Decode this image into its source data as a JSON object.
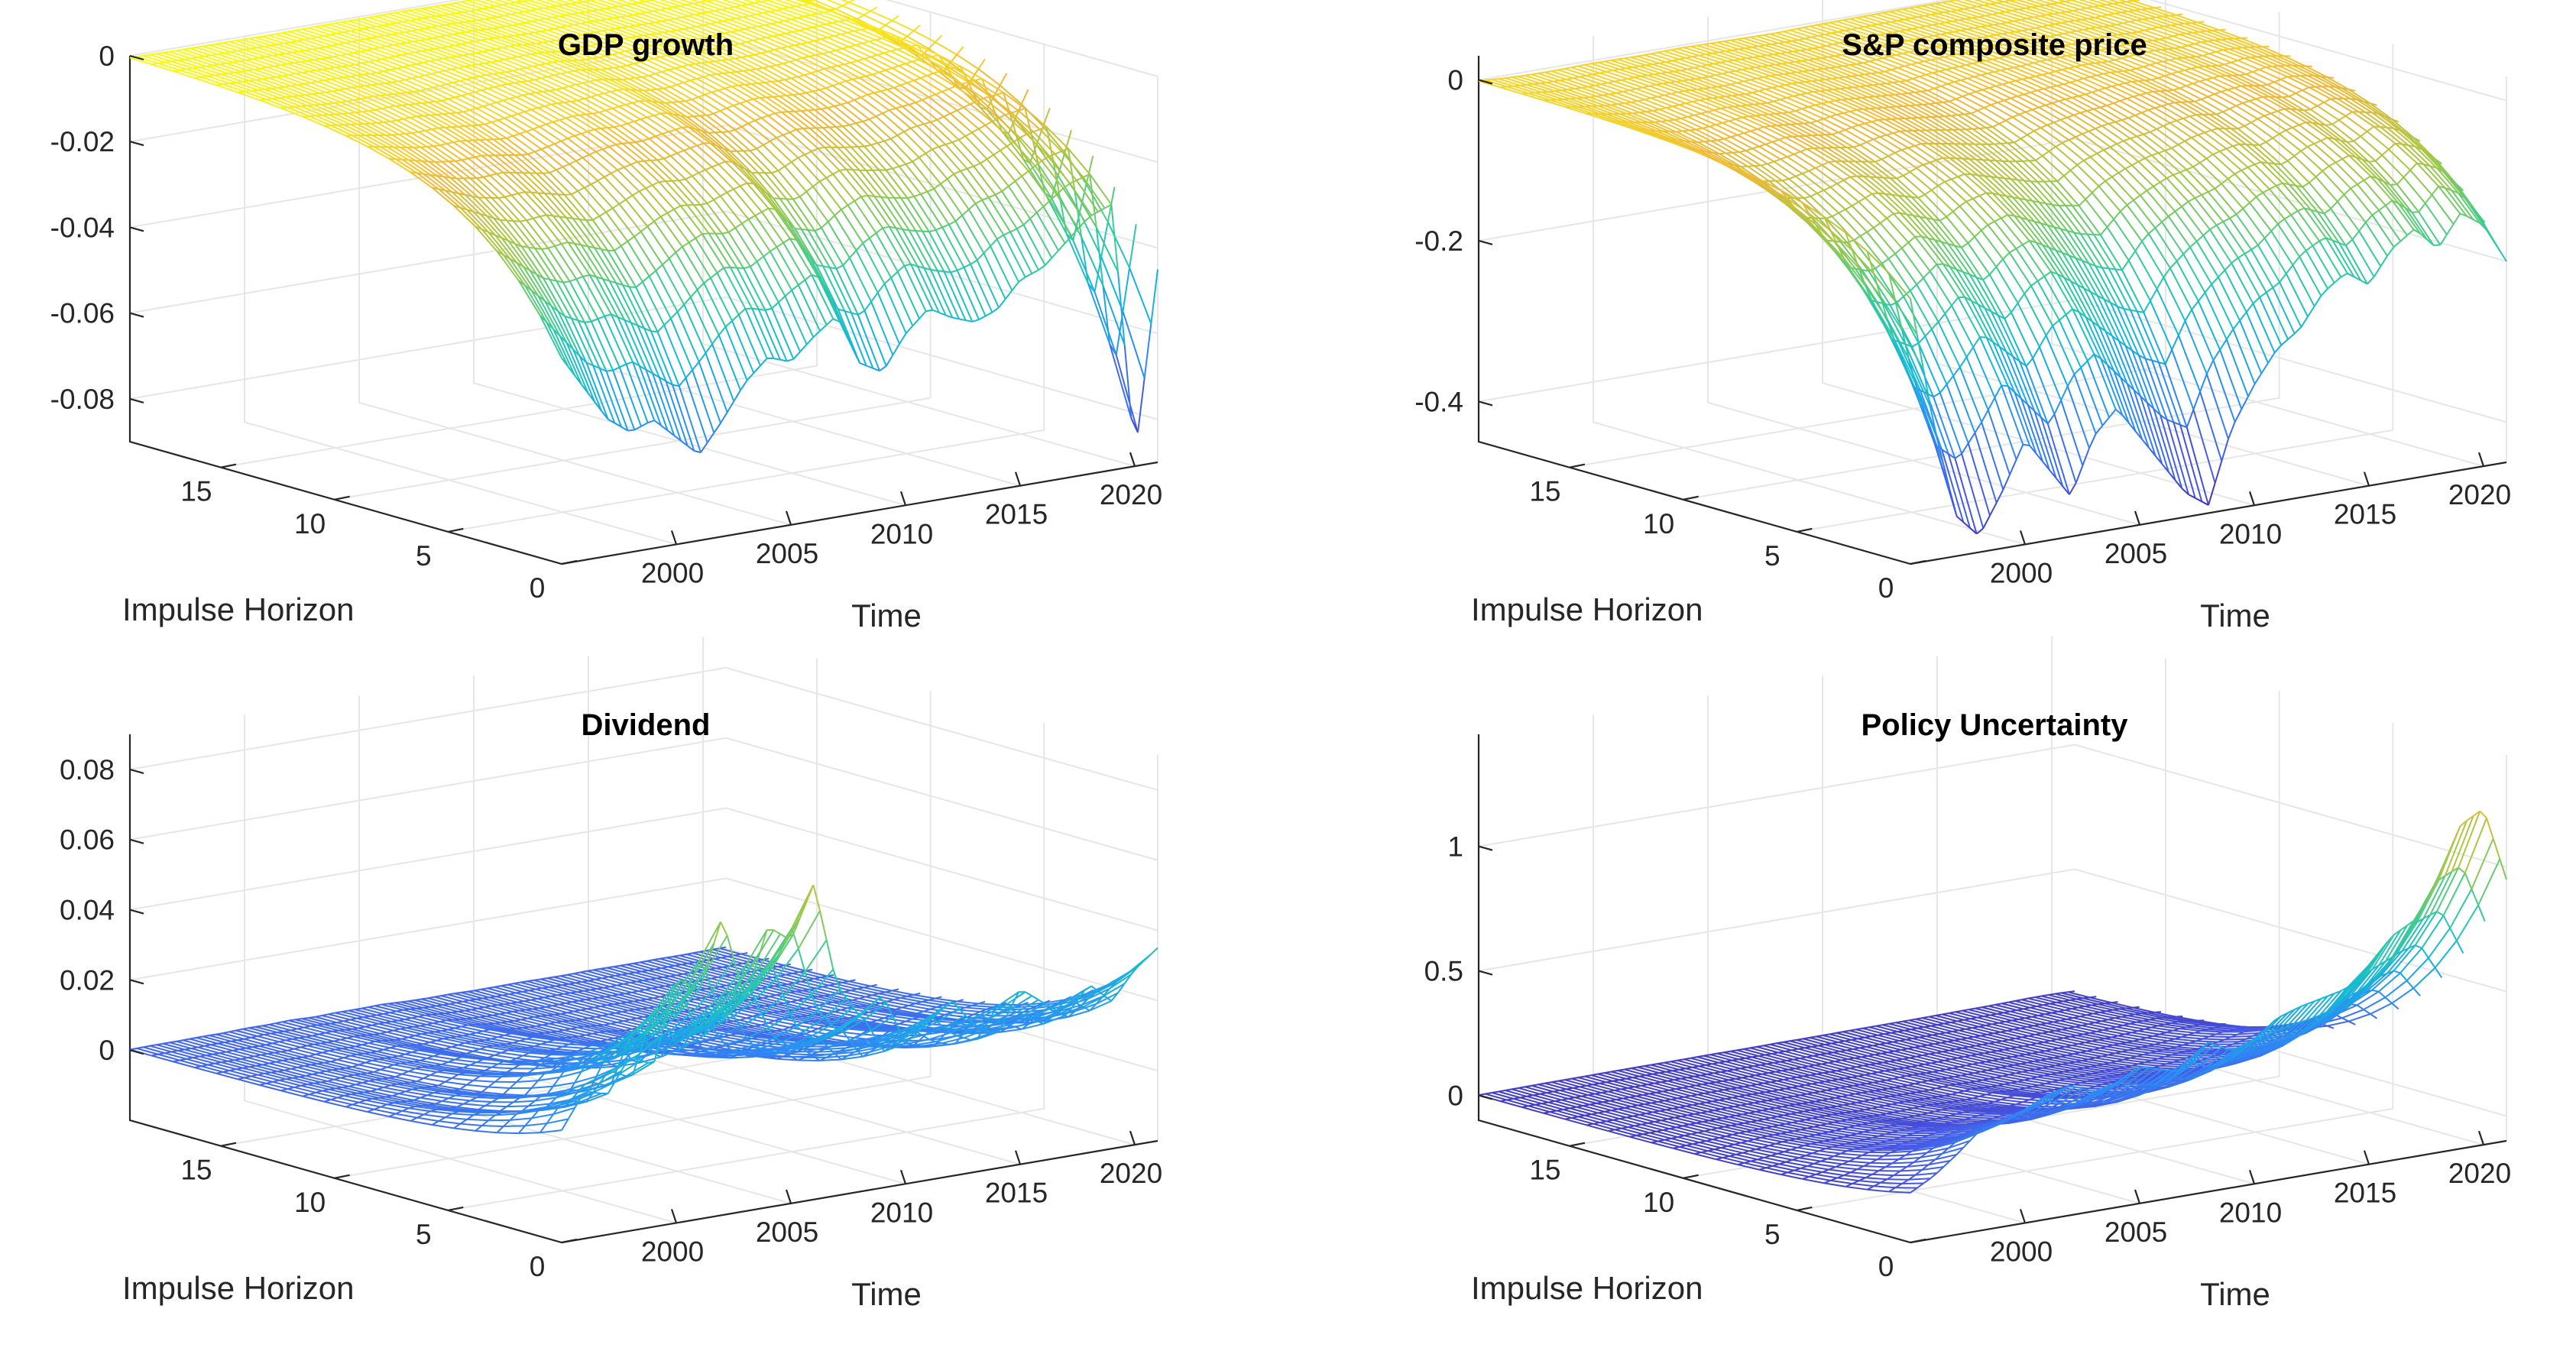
{
  "chart_data": [
    {
      "type": "surface",
      "title": "GDP growth",
      "xlabel": "Time",
      "ylabel": "Impulse Horizon",
      "zlabel": "",
      "x_ticks": [
        "2000",
        "2005",
        "2010",
        "2015",
        "2020"
      ],
      "y_ticks": [
        "0",
        "5",
        "10",
        "15"
      ],
      "z_ticks": [
        "0",
        "-0.02",
        "-0.04",
        "-0.06",
        "-0.08"
      ],
      "zlim": [
        -0.09,
        0.0
      ],
      "time_range": [
        1995,
        2021
      ],
      "horizon_range": [
        0,
        19
      ],
      "colormap": "parula",
      "response_at_horizon0": [
        [
          1995,
          -0.042
        ],
        [
          1996,
          -0.05
        ],
        [
          1997,
          -0.058
        ],
        [
          1998,
          -0.062
        ],
        [
          1999,
          -0.06
        ],
        [
          2000,
          -0.065
        ],
        [
          2001,
          -0.07
        ],
        [
          2002,
          -0.063
        ],
        [
          2003,
          -0.055
        ],
        [
          2004,
          -0.05
        ],
        [
          2005,
          -0.052
        ],
        [
          2006,
          -0.047
        ],
        [
          2007,
          -0.043
        ],
        [
          2008,
          -0.055
        ],
        [
          2009,
          -0.058
        ],
        [
          2010,
          -0.05
        ],
        [
          2011,
          -0.045
        ],
        [
          2012,
          -0.048
        ],
        [
          2013,
          -0.05
        ],
        [
          2014,
          -0.048
        ],
        [
          2015,
          -0.042
        ],
        [
          2016,
          -0.04
        ],
        [
          2017,
          -0.035
        ],
        [
          2018,
          -0.03
        ],
        [
          2019,
          -0.028
        ],
        [
          2020,
          -0.088
        ],
        [
          2021,
          -0.045
        ]
      ]
    },
    {
      "type": "surface",
      "title": "S&P composite price",
      "xlabel": "Time",
      "ylabel": "Impulse Horizon",
      "zlabel": "",
      "x_ticks": [
        "2000",
        "2005",
        "2010",
        "2015",
        "2020"
      ],
      "y_ticks": [
        "0",
        "5",
        "10",
        "15"
      ],
      "z_ticks": [
        "0",
        "-0.2",
        "-0.4"
      ],
      "zlim": [
        -0.45,
        0.03
      ],
      "time_range": [
        1995,
        2021
      ],
      "horizon_range": [
        0,
        19
      ],
      "colormap": "parula",
      "response_at_horizon0": [
        [
          1995,
          -0.12
        ],
        [
          1996,
          -0.28
        ],
        [
          1997,
          -0.4
        ],
        [
          1998,
          -0.43
        ],
        [
          1999,
          -0.38
        ],
        [
          2000,
          -0.32
        ],
        [
          2001,
          -0.36
        ],
        [
          2002,
          -0.4
        ],
        [
          2003,
          -0.33
        ],
        [
          2004,
          -0.3
        ],
        [
          2005,
          -0.34
        ],
        [
          2006,
          -0.38
        ],
        [
          2007,
          -0.42
        ],
        [
          2008,
          -0.44
        ],
        [
          2009,
          -0.35
        ],
        [
          2010,
          -0.3
        ],
        [
          2011,
          -0.26
        ],
        [
          2012,
          -0.24
        ],
        [
          2013,
          -0.2
        ],
        [
          2014,
          -0.18
        ],
        [
          2015,
          -0.2
        ],
        [
          2016,
          -0.16
        ],
        [
          2017,
          -0.14
        ],
        [
          2018,
          -0.17
        ],
        [
          2019,
          -0.13
        ],
        [
          2020,
          -0.15
        ],
        [
          2021,
          -0.2
        ]
      ]
    },
    {
      "type": "surface",
      "title": "Dividend",
      "xlabel": "Time",
      "ylabel": "Impulse Horizon",
      "zlabel": "",
      "x_ticks": [
        "2000",
        "2005",
        "2010",
        "2015",
        "2020"
      ],
      "y_ticks": [
        "0",
        "5",
        "10",
        "15"
      ],
      "z_ticks": [
        "0",
        "0.02",
        "0.04",
        "0.06",
        "0.08"
      ],
      "zlim": [
        -0.02,
        0.09
      ],
      "time_range": [
        1995,
        2021
      ],
      "horizon_range": [
        0,
        19
      ],
      "colormap": "parula",
      "response_at_horizon0": [
        [
          1995,
          0.012
        ],
        [
          1996,
          0.022
        ],
        [
          1997,
          0.02
        ],
        [
          1998,
          0.03
        ],
        [
          1999,
          0.026
        ],
        [
          2000,
          0.05
        ],
        [
          2001,
          0.045
        ],
        [
          2002,
          0.065
        ],
        [
          2003,
          0.04
        ],
        [
          2004,
          0.06
        ],
        [
          2005,
          0.055
        ],
        [
          2006,
          0.07
        ],
        [
          2007,
          0.04
        ],
        [
          2008,
          0.03
        ],
        [
          2009,
          0.035
        ],
        [
          2010,
          0.02
        ],
        [
          2011,
          0.025
        ],
        [
          2012,
          0.03
        ],
        [
          2013,
          0.022
        ],
        [
          2014,
          0.018
        ],
        [
          2015,
          0.03
        ],
        [
          2016,
          0.025
        ],
        [
          2017,
          0.02
        ],
        [
          2018,
          0.028
        ],
        [
          2019,
          0.022
        ],
        [
          2020,
          0.03
        ],
        [
          2021,
          0.035
        ]
      ]
    },
    {
      "type": "surface",
      "title": "Policy Uncertainty",
      "xlabel": "Time",
      "ylabel": "Impulse Horizon",
      "zlabel": "",
      "x_ticks": [
        "2000",
        "2005",
        "2010",
        "2015",
        "2020"
      ],
      "y_ticks": [
        "0",
        "5",
        "10",
        "15"
      ],
      "z_ticks": [
        "0",
        "0.5",
        "1"
      ],
      "zlim": [
        -0.1,
        1.45
      ],
      "time_range": [
        1995,
        2021
      ],
      "horizon_range": [
        0,
        19
      ],
      "colormap": "parula",
      "response_at_horizon0": [
        [
          1995,
          0.1
        ],
        [
          1996,
          0.15
        ],
        [
          1997,
          0.22
        ],
        [
          1998,
          0.3
        ],
        [
          1999,
          0.32
        ],
        [
          2000,
          0.35
        ],
        [
          2001,
          0.4
        ],
        [
          2002,
          0.42
        ],
        [
          2003,
          0.38
        ],
        [
          2004,
          0.4
        ],
        [
          2005,
          0.45
        ],
        [
          2006,
          0.42
        ],
        [
          2007,
          0.4
        ],
        [
          2008,
          0.5
        ],
        [
          2009,
          0.45
        ],
        [
          2010,
          0.48
        ],
        [
          2011,
          0.55
        ],
        [
          2012,
          0.58
        ],
        [
          2013,
          0.6
        ],
        [
          2014,
          0.62
        ],
        [
          2015,
          0.7
        ],
        [
          2016,
          0.8
        ],
        [
          2017,
          0.85
        ],
        [
          2018,
          1.0
        ],
        [
          2019,
          1.2
        ],
        [
          2020,
          1.25
        ],
        [
          2021,
          0.95
        ]
      ]
    }
  ]
}
